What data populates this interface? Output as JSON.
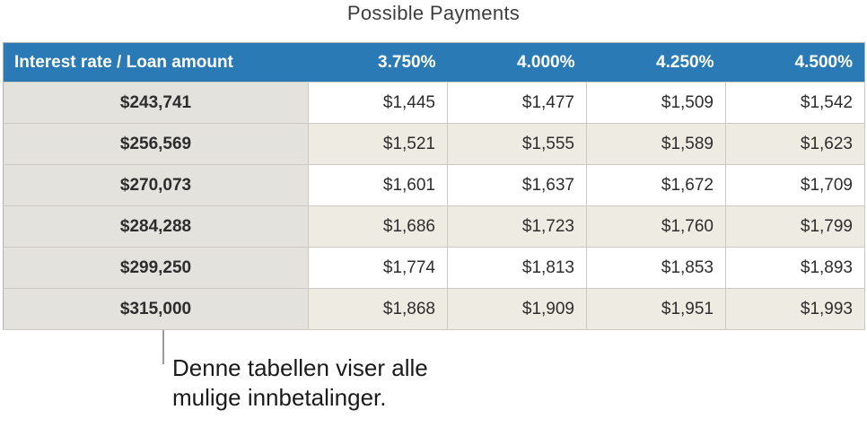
{
  "title": "Possible Payments",
  "table": {
    "type": "table",
    "corner_header": "Interest rate / Loan amount",
    "rate_columns": [
      "3.750%",
      "4.000%",
      "4.250%",
      "4.500%"
    ],
    "rows": [
      {
        "loan_amount": "$243,741",
        "payments": [
          "$1,445",
          "$1,477",
          "$1,509",
          "$1,542"
        ]
      },
      {
        "loan_amount": "$256,569",
        "payments": [
          "$1,521",
          "$1,555",
          "$1,589",
          "$1,623"
        ]
      },
      {
        "loan_amount": "$270,073",
        "payments": [
          "$1,601",
          "$1,637",
          "$1,672",
          "$1,709"
        ]
      },
      {
        "loan_amount": "$284,288",
        "payments": [
          "$1,686",
          "$1,723",
          "$1,760",
          "$1,799"
        ]
      },
      {
        "loan_amount": "$299,250",
        "payments": [
          "$1,774",
          "$1,813",
          "$1,853",
          "$1,893"
        ]
      },
      {
        "loan_amount": "$315,000",
        "payments": [
          "$1,868",
          "$1,909",
          "$1,951",
          "$1,993"
        ]
      }
    ]
  },
  "callout": {
    "lines": [
      "Denne tabellen viser alle",
      "mulige innbetalinger."
    ]
  },
  "colors": {
    "header_bg": "#2a7ab6",
    "header_text": "#ffffff",
    "label_column_bg": "#e4e2dd",
    "row_bg": "#ffffff",
    "row_alt_bg": "#eeebe2",
    "cell_border": "#ccc9c4",
    "outer_border": "#b3b1ad",
    "callout_line": "#9b9b9b",
    "text": "#2d2d2d"
  }
}
